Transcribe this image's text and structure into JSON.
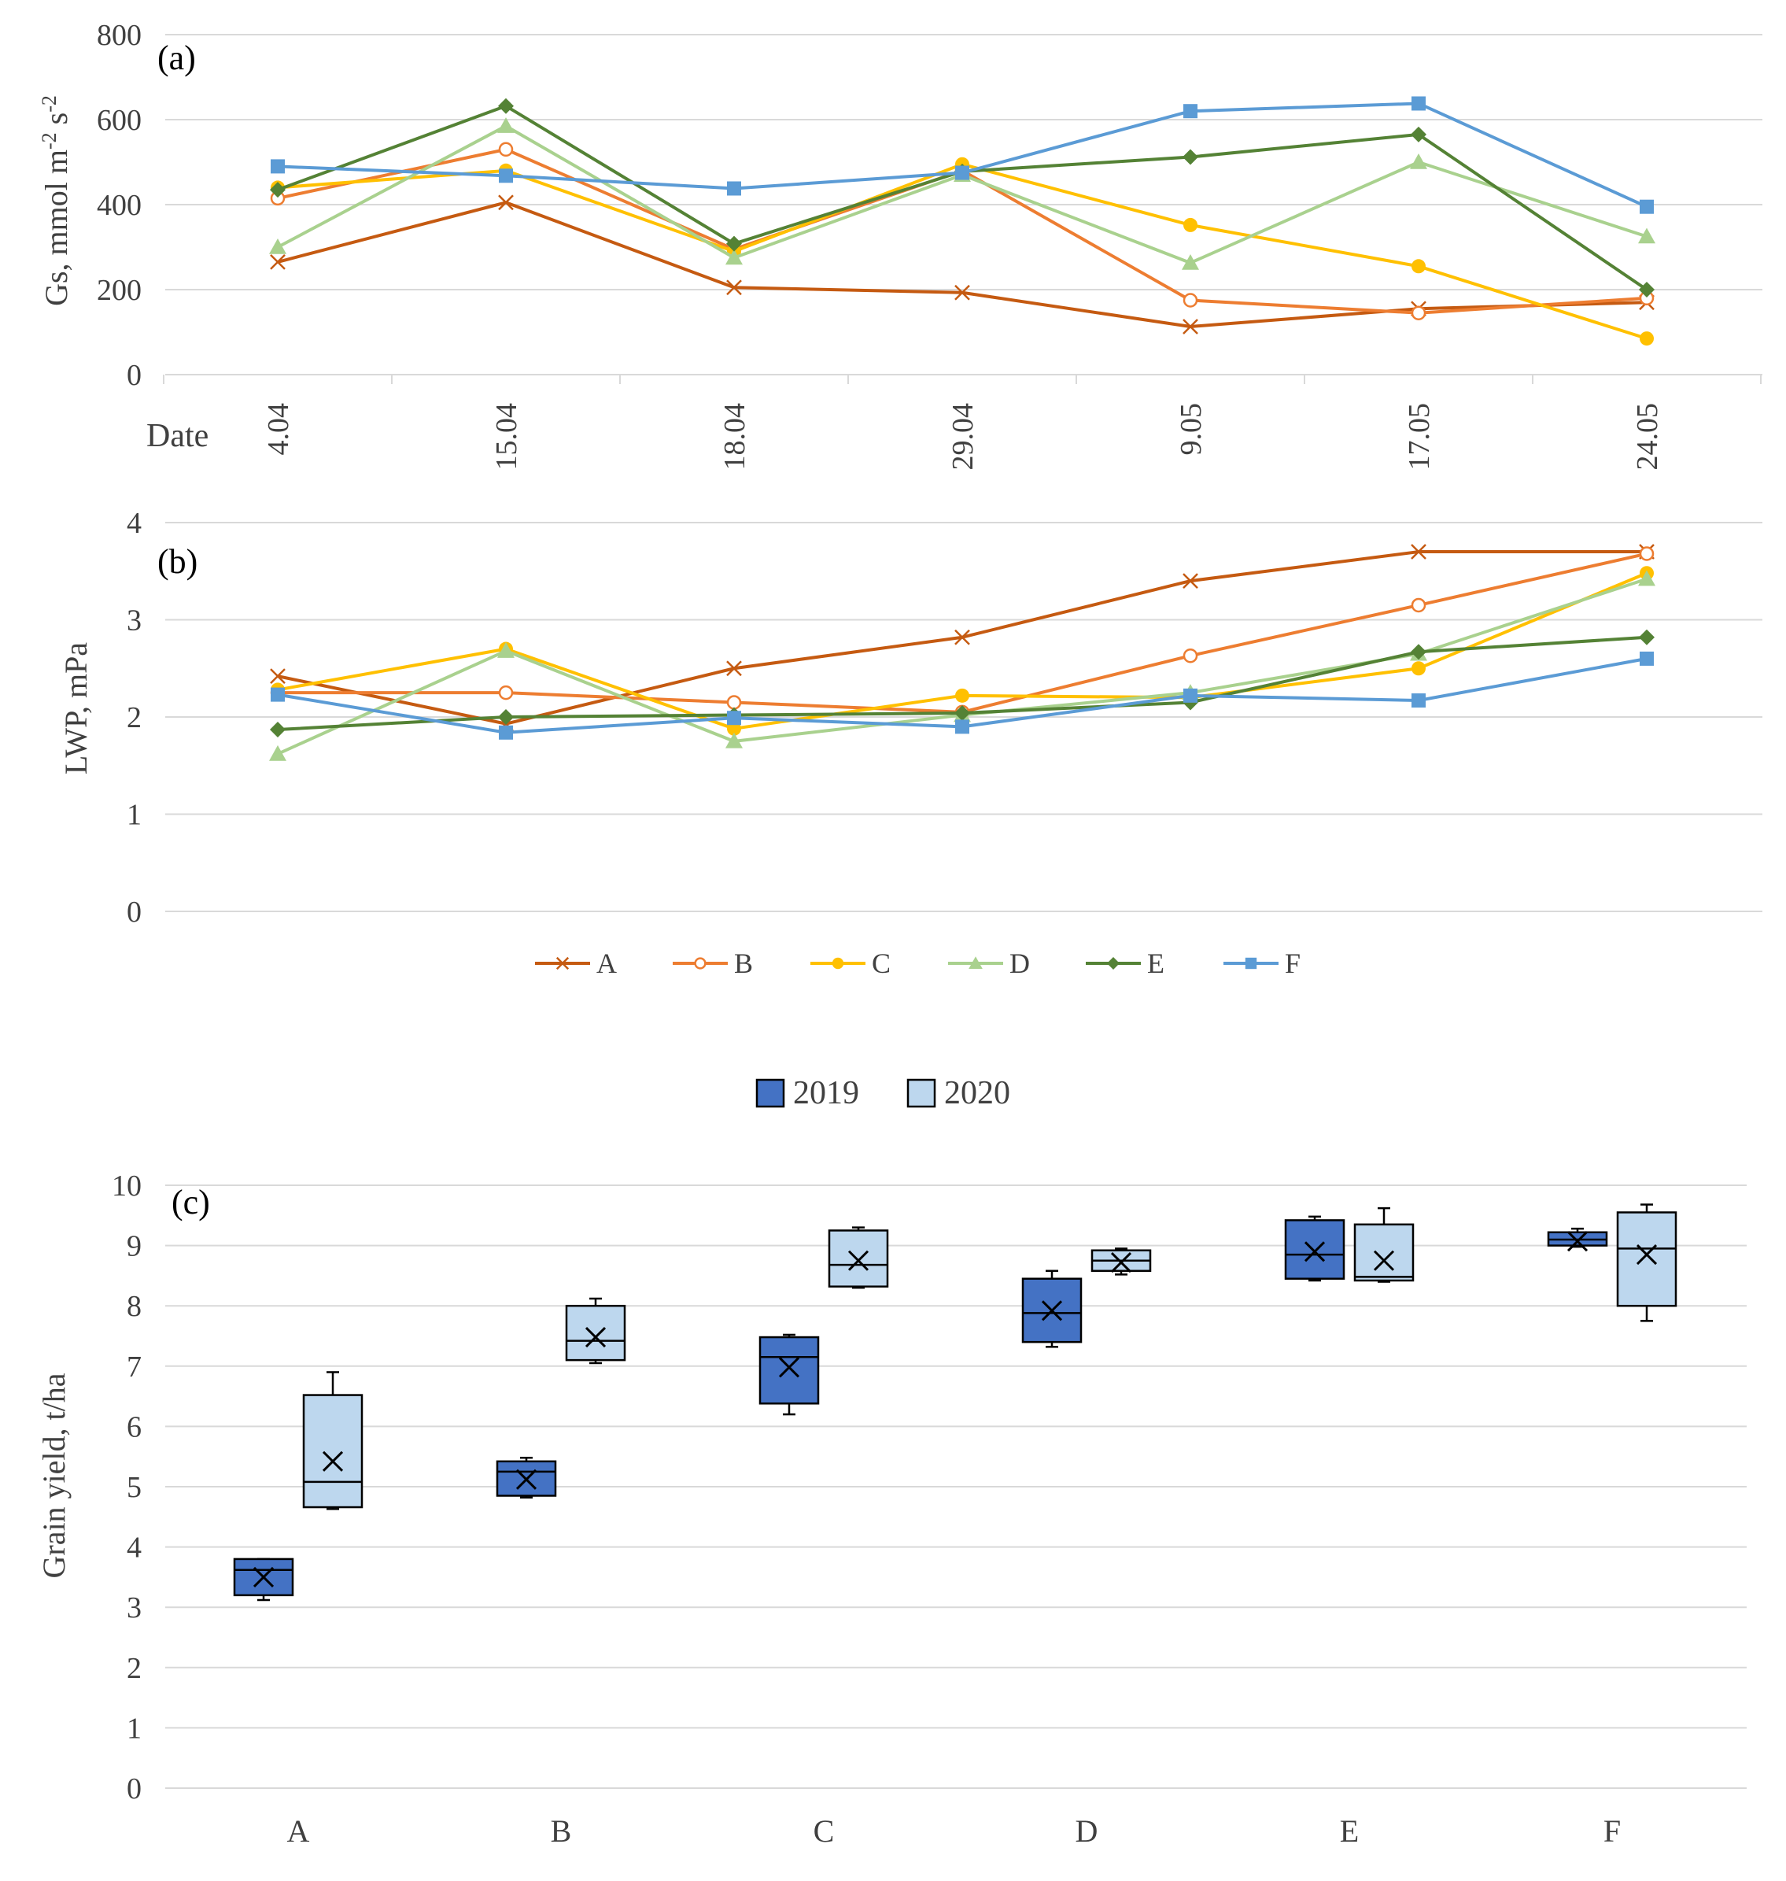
{
  "panel_a": {
    "panel_label": "(a)",
    "ylabel_main": "Gs, mmol m",
    "ylabel_sup1": "-2",
    "ylabel_mid": " s",
    "ylabel_sup2": "-2",
    "xlabel": "Date"
  },
  "panel_b": {
    "panel_label": "(b)",
    "ylabel": "LWP, mPa"
  },
  "panel_c": {
    "panel_label": "(c)",
    "ylabel": "Grain yield, t/ha"
  },
  "colors": {
    "A": "#C55A11",
    "B": "#ED7D31",
    "C": "#FFC000",
    "D": "#A9D18E",
    "E": "#548235",
    "F": "#5B9BD5",
    "y2019": "#4472C4",
    "y2020": "#BDD7EE",
    "grid": "#D9D9D9",
    "text": "#404040"
  },
  "chart_data": [
    {
      "type": "line",
      "title": "(a)",
      "xlabel": "Date",
      "ylabel": "Gs, mmol m-2 s-2",
      "ylim": [
        0,
        800
      ],
      "yticks": [
        0,
        200,
        400,
        600,
        800
      ],
      "categories": [
        "4.04",
        "15.04",
        "18.04",
        "29.04",
        "9.05",
        "17.05",
        "24.05"
      ],
      "series": [
        {
          "name": "A",
          "marker": "x",
          "values": [
            265,
            405,
            205,
            193,
            113,
            155,
            170
          ]
        },
        {
          "name": "B",
          "marker": "circle-open",
          "values": [
            415,
            530,
            295,
            480,
            175,
            145,
            180
          ]
        },
        {
          "name": "C",
          "marker": "circle",
          "values": [
            440,
            480,
            290,
            495,
            352,
            255,
            85
          ]
        },
        {
          "name": "D",
          "marker": "triangle",
          "values": [
            300,
            585,
            275,
            470,
            263,
            500,
            325
          ]
        },
        {
          "name": "E",
          "marker": "diamond",
          "values": [
            435,
            632,
            308,
            478,
            512,
            565,
            200
          ]
        },
        {
          "name": "F",
          "marker": "square",
          "values": [
            490,
            468,
            438,
            475,
            620,
            638,
            395
          ]
        }
      ]
    },
    {
      "type": "line",
      "title": "(b)",
      "xlabel": "",
      "ylabel": "LWP, mPa",
      "ylim": [
        0,
        4
      ],
      "yticks": [
        0,
        1,
        2,
        3,
        4
      ],
      "categories": [
        "4.04",
        "15.04",
        "18.04",
        "29.04",
        "9.05",
        "17.05",
        "24.05"
      ],
      "legend": [
        "A",
        "B",
        "C",
        "D",
        "E",
        "F"
      ],
      "series": [
        {
          "name": "A",
          "marker": "x",
          "values": [
            2.42,
            1.93,
            2.5,
            2.82,
            3.4,
            3.7,
            3.7
          ]
        },
        {
          "name": "B",
          "marker": "circle-open",
          "values": [
            2.25,
            2.25,
            2.15,
            2.05,
            2.63,
            3.15,
            3.68
          ]
        },
        {
          "name": "C",
          "marker": "circle",
          "values": [
            2.28,
            2.7,
            1.88,
            2.22,
            2.2,
            2.5,
            3.48
          ]
        },
        {
          "name": "D",
          "marker": "triangle",
          "values": [
            1.62,
            2.68,
            1.75,
            2.02,
            2.25,
            2.65,
            3.42
          ]
        },
        {
          "name": "E",
          "marker": "diamond",
          "values": [
            1.87,
            2.0,
            2.02,
            2.04,
            2.15,
            2.67,
            2.82
          ]
        },
        {
          "name": "F",
          "marker": "square",
          "values": [
            2.23,
            1.84,
            1.99,
            1.9,
            2.22,
            2.17,
            2.6
          ]
        }
      ]
    },
    {
      "type": "box",
      "title": "(c)",
      "xlabel": "",
      "ylabel": "Grain yield, t/ha",
      "ylim": [
        0,
        10
      ],
      "yticks": [
        0,
        1,
        2,
        3,
        4,
        5,
        6,
        7,
        8,
        9,
        10
      ],
      "categories": [
        "A",
        "B",
        "C",
        "D",
        "E",
        "F"
      ],
      "legend": [
        "2019",
        "2020"
      ],
      "series": [
        {
          "name": "2019",
          "boxes": [
            {
              "min": 3.12,
              "q1": 3.2,
              "median": 3.62,
              "q3": 3.8,
              "max": 3.8,
              "mean": 3.5
            },
            {
              "min": 4.82,
              "q1": 4.85,
              "median": 5.25,
              "q3": 5.42,
              "max": 5.48,
              "mean": 5.12
            },
            {
              "min": 6.2,
              "q1": 6.38,
              "median": 7.15,
              "q3": 7.48,
              "max": 7.52,
              "mean": 6.98
            },
            {
              "min": 7.32,
              "q1": 7.4,
              "median": 7.88,
              "q3": 8.45,
              "max": 8.58,
              "mean": 7.92
            },
            {
              "min": 8.42,
              "q1": 8.45,
              "median": 8.85,
              "q3": 9.42,
              "max": 9.48,
              "mean": 8.9
            },
            {
              "min": 8.98,
              "q1": 9.0,
              "median": 9.1,
              "q3": 9.22,
              "max": 9.28,
              "mean": 9.07
            }
          ]
        },
        {
          "name": "2020",
          "boxes": [
            {
              "min": 4.63,
              "q1": 4.66,
              "median": 5.08,
              "q3": 6.52,
              "max": 6.9,
              "mean": 5.42
            },
            {
              "min": 7.05,
              "q1": 7.1,
              "median": 7.42,
              "q3": 8.0,
              "max": 8.12,
              "mean": 7.48
            },
            {
              "min": 8.3,
              "q1": 8.32,
              "median": 8.68,
              "q3": 9.25,
              "max": 9.3,
              "mean": 8.75
            },
            {
              "min": 8.52,
              "q1": 8.58,
              "median": 8.75,
              "q3": 8.92,
              "max": 8.95,
              "mean": 8.72
            },
            {
              "min": 8.4,
              "q1": 8.42,
              "median": 8.48,
              "q3": 9.35,
              "max": 9.62,
              "mean": 8.75
            },
            {
              "min": 7.75,
              "q1": 8.0,
              "median": 8.95,
              "q3": 9.55,
              "max": 9.68,
              "mean": 8.85
            }
          ]
        }
      ]
    }
  ]
}
